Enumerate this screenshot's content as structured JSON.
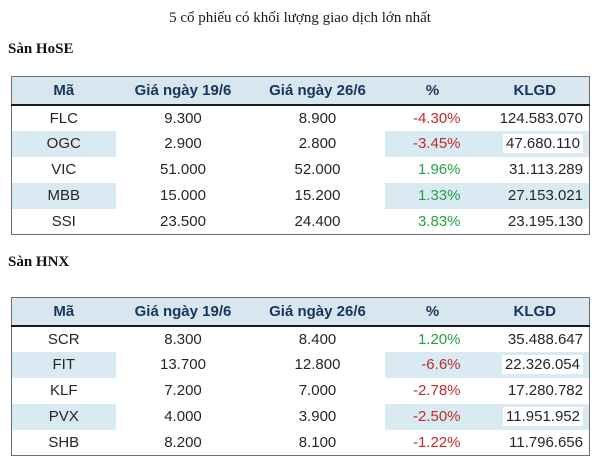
{
  "title": "5 cổ phiếu có khối lượng giao dịch lớn nhất",
  "sections": [
    {
      "label": "Sàn HoSE",
      "columns": [
        "Mã",
        "Giá ngày 19/6",
        "Giá ngày 26/6",
        "%",
        "KLGD"
      ],
      "rows": [
        {
          "ma": "FLC",
          "gia_19_6": "9.300",
          "gia_26_6": "8.900",
          "pct": "-4.30%",
          "klgd": "124.583.070",
          "striped": false,
          "klgd_white_patch": false
        },
        {
          "ma": "OGC",
          "gia_19_6": "2.900",
          "gia_26_6": "2.800",
          "pct": "-3.45%",
          "klgd": "47.680.110",
          "striped": true,
          "klgd_white_patch": true
        },
        {
          "ma": "VIC",
          "gia_19_6": "51.000",
          "gia_26_6": "52.000",
          "pct": "1.96%",
          "klgd": "31.113.289",
          "striped": false,
          "klgd_white_patch": false
        },
        {
          "ma": "MBB",
          "gia_19_6": "15.000",
          "gia_26_6": "15.200",
          "pct": "1.33%",
          "klgd": "27.153.021",
          "striped": true,
          "klgd_white_patch": false
        },
        {
          "ma": "SSI",
          "gia_19_6": "23.500",
          "gia_26_6": "24.400",
          "pct": "3.83%",
          "klgd": "23.195.130",
          "striped": false,
          "klgd_white_patch": false
        }
      ]
    },
    {
      "label": "Sàn HNX",
      "columns": [
        "Mã",
        "Giá ngày 19/6",
        "Giá ngày 26/6",
        "%",
        "KLGD"
      ],
      "rows": [
        {
          "ma": "SCR",
          "gia_19_6": "8.300",
          "gia_26_6": "8.400",
          "pct": "1.20%",
          "klgd": "35.488.647",
          "striped": false,
          "klgd_white_patch": false
        },
        {
          "ma": "FIT",
          "gia_19_6": "13.700",
          "gia_26_6": "12.800",
          "pct": "-6.6%",
          "klgd": "22.326.054",
          "striped": true,
          "klgd_white_patch": true
        },
        {
          "ma": "KLF",
          "gia_19_6": "7.200",
          "gia_26_6": "7.000",
          "pct": "-2.78%",
          "klgd": "17.280.782",
          "striped": false,
          "klgd_white_patch": false
        },
        {
          "ma": "PVX",
          "gia_19_6": "4.000",
          "gia_26_6": "3.900",
          "pct": "-2.50%",
          "klgd": "11.951.952",
          "striped": true,
          "klgd_white_patch": true
        },
        {
          "ma": "SHB",
          "gia_19_6": "8.200",
          "gia_26_6": "8.100",
          "pct": "-1.22%",
          "klgd": "11.796.656",
          "striped": false,
          "klgd_white_patch": false
        }
      ]
    }
  ],
  "colors": {
    "header_bg": "#d7e6ef",
    "stripe_bg": "#daeaf2",
    "header_text": "#17365d",
    "body_text": "#262626",
    "negative_pct": "#c22b2b",
    "positive_pct": "#28a044",
    "table_border": "#6e6e6e"
  }
}
